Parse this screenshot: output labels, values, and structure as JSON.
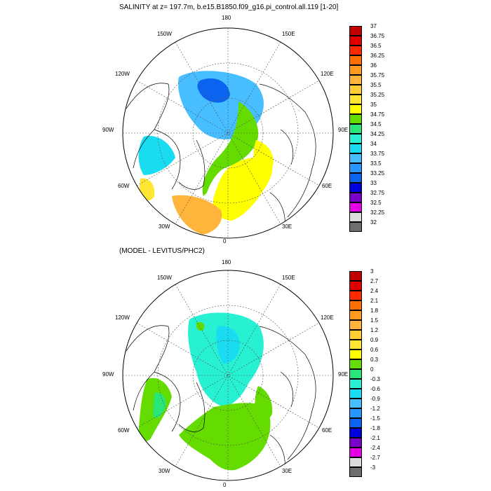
{
  "panels": [
    {
      "title": "SALINITY at z= 197.7m, b.e15.B1850.f09_g16.pi_control.all.119 [1-20]",
      "lon_labels": {
        "n": "180",
        "s": "0",
        "e": "90E",
        "w": "90W",
        "ne": "150E",
        "nw": "150W",
        "ene": "120E",
        "wnw": "120W",
        "se": "30E",
        "sw": "30W",
        "ese": "60E",
        "wsw": "60W"
      },
      "legend": {
        "labels": [
          "37",
          "36.75",
          "36.5",
          "36.25",
          "36",
          "35.75",
          "35.5",
          "35.25",
          "35",
          "34.75",
          "34.5",
          "34.25",
          "34",
          "33.75",
          "33.5",
          "33.25",
          "33",
          "32.75",
          "32.5",
          "32.25",
          "32"
        ],
        "colors": [
          "#c00000",
          "#e00000",
          "#ff2a00",
          "#ff6e00",
          "#ff9a1e",
          "#ffb43c",
          "#ffce32",
          "#ffe632",
          "#ffff00",
          "#64dc00",
          "#28e678",
          "#28f0d2",
          "#19dcf0",
          "#46beff",
          "#2896ff",
          "#0a64f0",
          "#0000dc",
          "#7800c8",
          "#e600e6",
          "#dcdcdc",
          "#6e6e6e"
        ]
      }
    },
    {
      "title": "(MODEL - LEVITUS/PHC2)",
      "lon_labels": {
        "n": "180",
        "s": "0",
        "e": "90E",
        "w": "90W",
        "ne": "150E",
        "nw": "150W",
        "ene": "120E",
        "wnw": "120W",
        "se": "30E",
        "sw": "30W",
        "ese": "60E",
        "wsw": "60W"
      },
      "legend": {
        "labels": [
          "3",
          "2.7",
          "2.4",
          "2.1",
          "1.8",
          "1.5",
          "1.2",
          "0.9",
          "0.6",
          "0.3",
          "0",
          "-0.3",
          "-0.6",
          "-0.9",
          "-1.2",
          "-1.5",
          "-1.8",
          "-2.1",
          "-2.4",
          "-2.7",
          "-3"
        ],
        "colors": [
          "#c00000",
          "#e00000",
          "#ff2a00",
          "#ff6e00",
          "#ff9a1e",
          "#ffb43c",
          "#ffce32",
          "#ffe632",
          "#ffff00",
          "#64dc00",
          "#28e678",
          "#28f0d2",
          "#19dcf0",
          "#46beff",
          "#2896ff",
          "#0a64f0",
          "#0000dc",
          "#7800c8",
          "#e600e6",
          "#dcdcdc",
          "#6e6e6e"
        ]
      }
    }
  ]
}
